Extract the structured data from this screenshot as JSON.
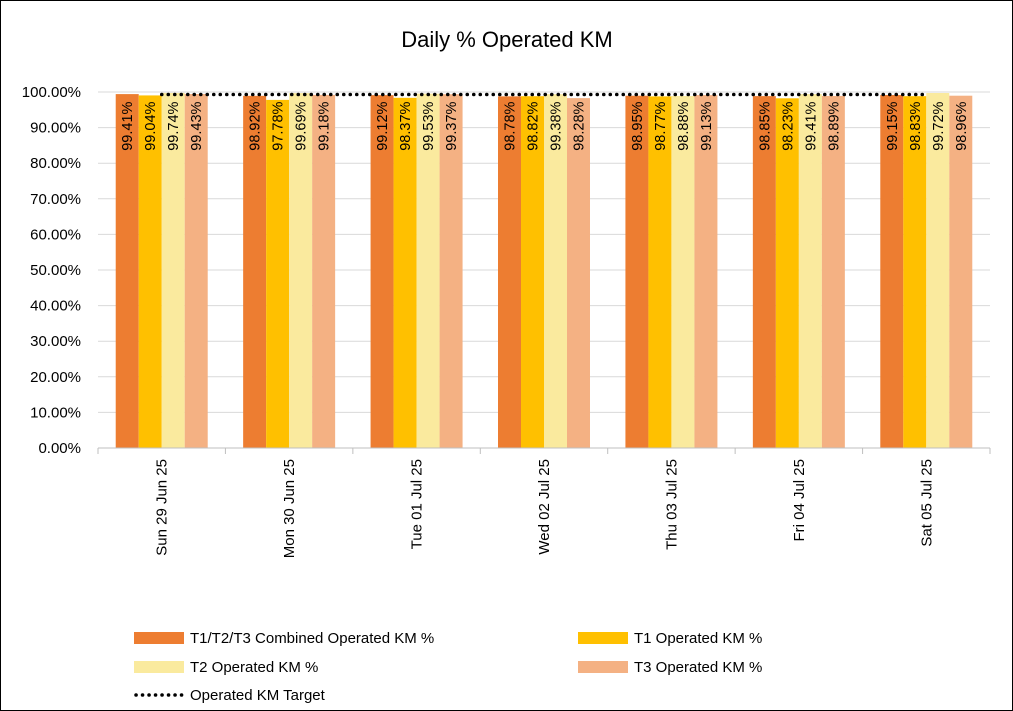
{
  "chart_data": {
    "type": "bar",
    "title": "Daily % Operated KM",
    "xlabel": "",
    "ylabel": "",
    "ylim": [
      0,
      100
    ],
    "y_tick_step": 10,
    "y_tick_labels": [
      "0.00%",
      "10.00%",
      "20.00%",
      "30.00%",
      "40.00%",
      "50.00%",
      "60.00%",
      "70.00%",
      "80.00%",
      "90.00%",
      "100.00%"
    ],
    "grid": true,
    "legend_position": "bottom",
    "categories": [
      "Sun 29 Jun 25",
      "Mon 30 Jun 25",
      "Tue 01 Jul 25",
      "Wed 02 Jul 25",
      "Thu 03 Jul 25",
      "Fri 04 Jul 25",
      "Sat 05 Jul 25"
    ],
    "series": [
      {
        "name": "T1/T2/T3 Combined Operated KM %",
        "color": "#ED7D31",
        "values": [
          99.41,
          98.92,
          99.12,
          98.78,
          98.95,
          98.85,
          99.15
        ],
        "labels": [
          "99.41%",
          "98.92%",
          "99.12%",
          "98.78%",
          "98.95%",
          "98.85%",
          "99.15%"
        ]
      },
      {
        "name": "T1 Operated KM %",
        "color": "#FFC000",
        "values": [
          99.04,
          97.78,
          98.37,
          98.82,
          98.77,
          98.23,
          98.83
        ],
        "labels": [
          "99.04%",
          "97.78%",
          "98.37%",
          "98.82%",
          "98.77%",
          "98.23%",
          "98.83%"
        ]
      },
      {
        "name": "T2 Operated KM %",
        "color": "#FAEA9E",
        "values": [
          99.74,
          99.69,
          99.53,
          99.38,
          98.88,
          99.41,
          99.72
        ],
        "labels": [
          "99.74%",
          "99.69%",
          "99.53%",
          "99.38%",
          "98.88%",
          "99.41%",
          "99.72%"
        ]
      },
      {
        "name": "T3 Operated KM %",
        "color": "#F4B183",
        "values": [
          99.43,
          99.18,
          99.37,
          98.28,
          99.13,
          98.89,
          98.96
        ],
        "labels": [
          "99.43%",
          "99.18%",
          "99.37%",
          "98.28%",
          "99.13%",
          "98.89%",
          "98.96%"
        ]
      }
    ],
    "target": {
      "name": "Operated KM Target",
      "value": 99.0,
      "color": "#000000",
      "style": "dotted"
    }
  }
}
